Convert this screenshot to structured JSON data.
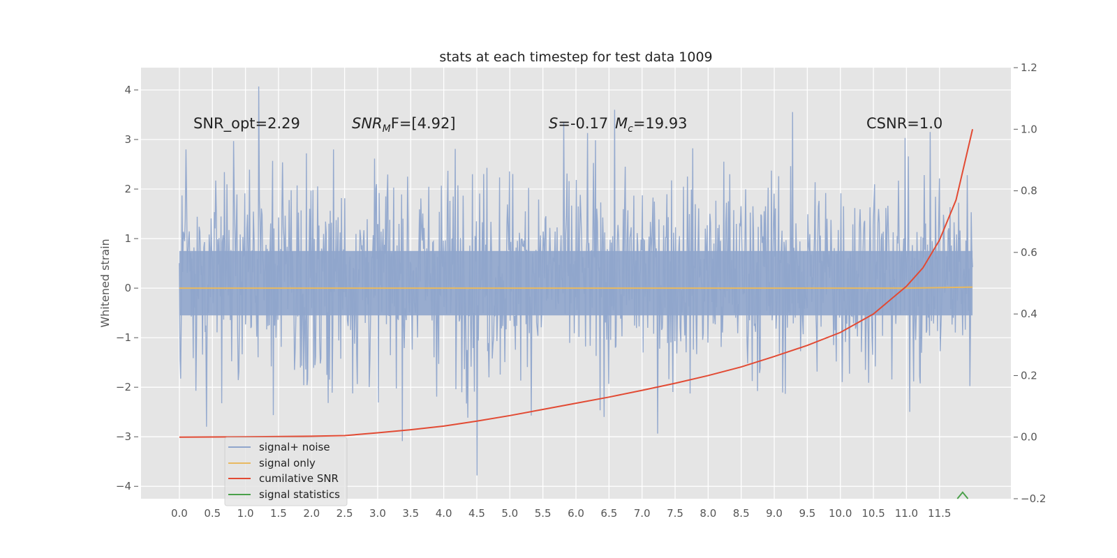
{
  "chart_data": {
    "type": "line",
    "title": "stats at each timestep for test data 1009",
    "ylabel": "Whitened strain",
    "xlim": [
      -0.58,
      12.58
    ],
    "ylim": [
      -4.25,
      4.45
    ],
    "y2lim": [
      -0.2,
      1.2
    ],
    "x_ticks": [
      0.0,
      0.5,
      1.0,
      1.5,
      2.0,
      2.5,
      3.0,
      3.5,
      4.0,
      4.5,
      5.0,
      5.5,
      6.0,
      6.5,
      7.0,
      7.5,
      8.0,
      8.5,
      9.0,
      9.5,
      10.0,
      10.5,
      11.0,
      11.5
    ],
    "x_tick_labels": [
      "0.0",
      "0.5",
      "1.0",
      "1.5",
      "2.0",
      "2.5",
      "3.0",
      "3.5",
      "4.0",
      "4.5",
      "5.0",
      "5.5",
      "6.0",
      "6.5",
      "7.0",
      "7.5",
      "8.0",
      "8.5",
      "9.0",
      "9.5",
      "10.0",
      "10.5",
      "11.0",
      "11.5"
    ],
    "y_ticks": [
      -4,
      -3,
      -2,
      -1,
      0,
      1,
      2,
      3,
      4
    ],
    "y_tick_labels": [
      "−4",
      "−3",
      "−2",
      "−1",
      "0",
      "1",
      "2",
      "3",
      "4"
    ],
    "y2_ticks": [
      -0.2,
      0.0,
      0.2,
      0.4,
      0.6,
      0.8,
      1.0,
      1.2
    ],
    "y2_tick_labels": [
      "−0.2",
      "0.0",
      "0.2",
      "0.4",
      "0.6",
      "0.8",
      "1.0",
      "1.2"
    ],
    "grid": true,
    "legend_position": "bottom-left",
    "noise": {
      "x_range": [
        0.0,
        12.0
      ],
      "samples": 1200,
      "amplitude_typical": 1.8,
      "max": 4.07,
      "min": -3.78
    },
    "series": [
      {
        "name": "signal+ noise",
        "color": "#8fa5cc",
        "axis": "left",
        "note_values": "dense noise trace, roughly between −2.5 and +3.5"
      },
      {
        "name": "signal only",
        "color": "#e8b960",
        "axis": "left",
        "x": [
          0.0,
          11.0,
          12.0
        ],
        "y": [
          0.0,
          0.0,
          0.02
        ]
      },
      {
        "name": "cumilative SNR",
        "color": "#e24a33",
        "axis": "right",
        "x": [
          0.0,
          1.0,
          2.0,
          2.5,
          3.0,
          3.5,
          4.0,
          4.5,
          5.0,
          5.5,
          6.0,
          6.5,
          7.0,
          7.5,
          8.0,
          8.5,
          9.0,
          9.5,
          10.0,
          10.5,
          11.0,
          11.25,
          11.5,
          11.75,
          12.0
        ],
        "y": [
          0.0,
          0.001,
          0.003,
          0.005,
          0.014,
          0.024,
          0.036,
          0.052,
          0.07,
          0.09,
          0.11,
          0.13,
          0.152,
          0.175,
          0.2,
          0.228,
          0.262,
          0.298,
          0.34,
          0.4,
          0.49,
          0.55,
          0.64,
          0.77,
          1.0
        ]
      },
      {
        "name": "signal statistics",
        "color": "#348abd",
        "axis": "left",
        "x": [
          11.77,
          11.85,
          11.93
        ],
        "y": [
          -4.25,
          -4.12,
          -4.25
        ]
      }
    ],
    "legend_line_colors": {
      "signal statistics": "#4aa04a"
    },
    "statistics_marker_color": "#4aa04a",
    "annotations": {
      "snr_opt": "SNR_opt=2.29",
      "snr_mf_main": "SNR",
      "snr_mf_sub": "M",
      "snr_mf_rest": "F=[4.92]",
      "s_main": "S",
      "s_rest": "=-0.17",
      "mc_main": "M",
      "mc_sub": "c",
      "mc_rest": "=19.93",
      "csnr": "CSNR=1.0"
    },
    "legend": [
      "signal+ noise",
      "signal only",
      "cumilative SNR",
      "signal statistics"
    ]
  }
}
